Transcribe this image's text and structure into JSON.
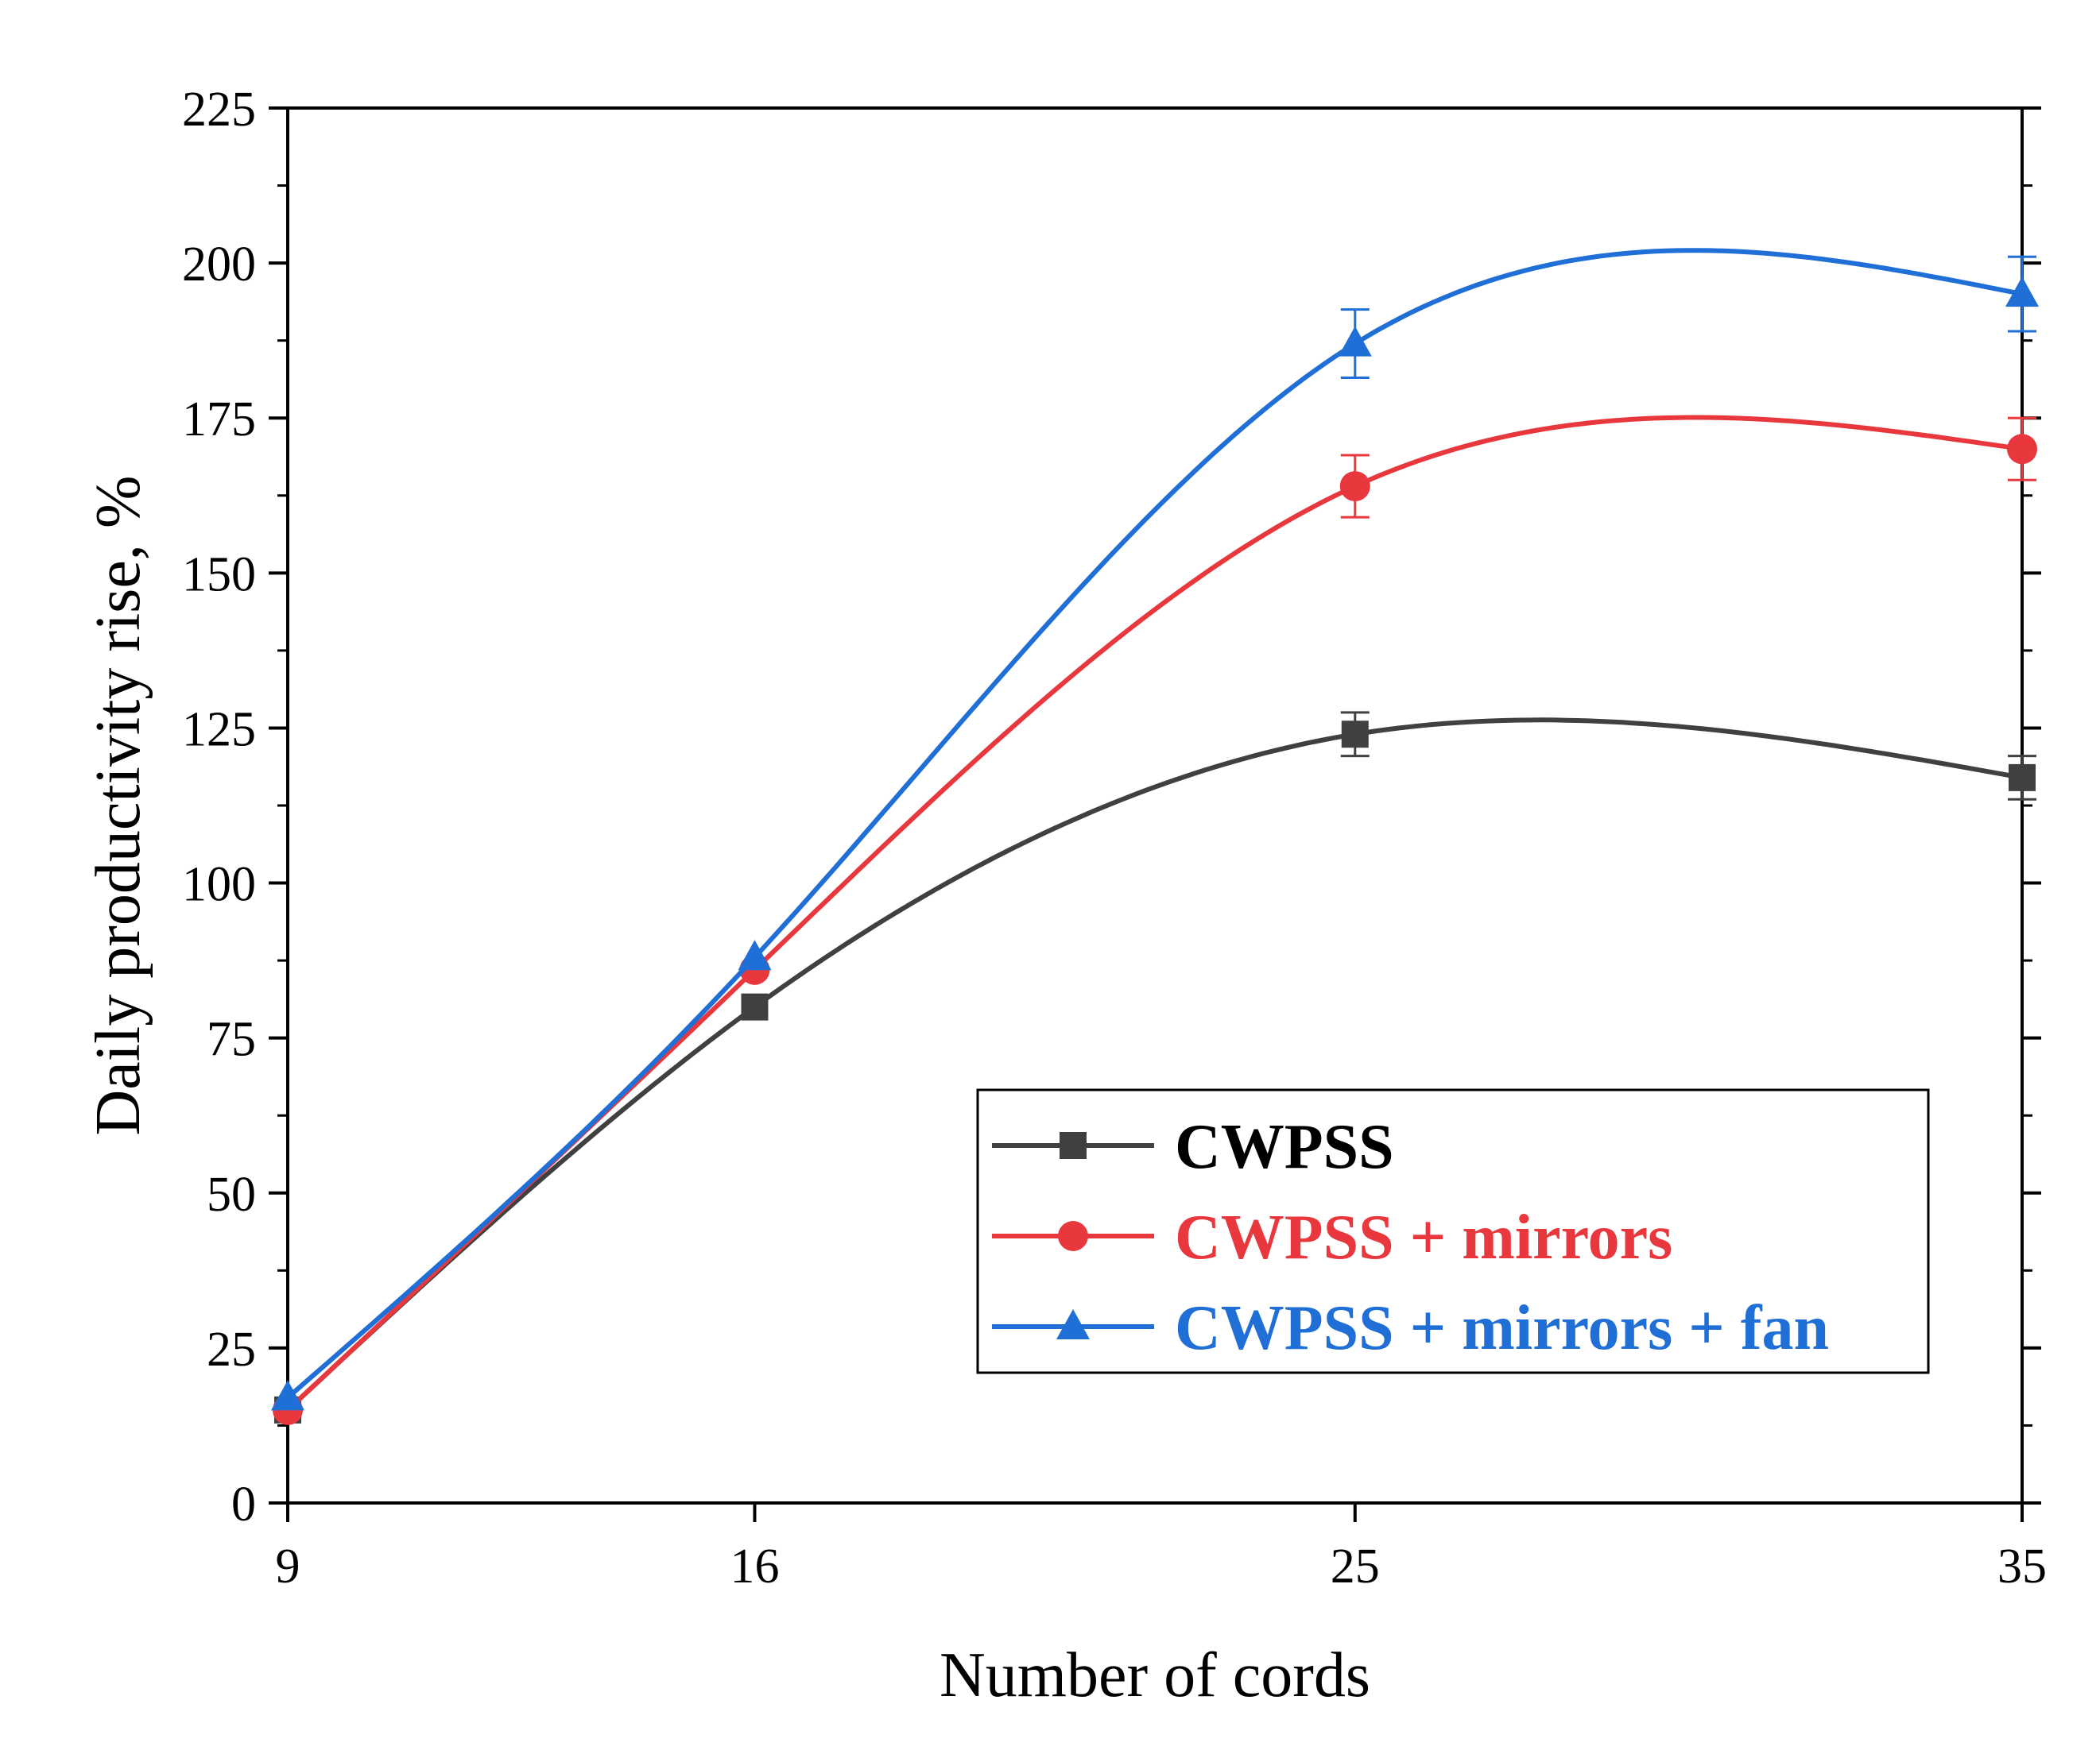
{
  "chart_data": {
    "type": "line",
    "title": "",
    "xlabel": "Number of cords",
    "ylabel": "Daily productivity rise, %",
    "categories": [
      "9",
      "16",
      "25",
      "35"
    ],
    "x": [
      9,
      16,
      25,
      35
    ],
    "xlim": [
      9,
      35
    ],
    "ylim": [
      0,
      225
    ],
    "yticks": [
      "0",
      "25",
      "50",
      "75",
      "100",
      "125",
      "150",
      "175",
      "200",
      "225"
    ],
    "grid": false,
    "legend_position": "lower-right",
    "series": [
      {
        "name": "CWPSS",
        "values": [
          15,
          80,
          124,
          117
        ],
        "errors": [
          0,
          0,
          3.5,
          3.5
        ],
        "color": "#404040",
        "marker": "square"
      },
      {
        "name": "CWPSS + mirrors",
        "values": [
          15,
          86,
          164,
          170
        ],
        "errors": [
          0,
          0,
          5,
          5
        ],
        "color": "#e8383d",
        "marker": "circle"
      },
      {
        "name": "CWPSS + mirrors + fan",
        "values": [
          17,
          88,
          187,
          195
        ],
        "errors": [
          0,
          0,
          5.5,
          6
        ],
        "color": "#1f6fd6",
        "marker": "triangle"
      }
    ]
  }
}
